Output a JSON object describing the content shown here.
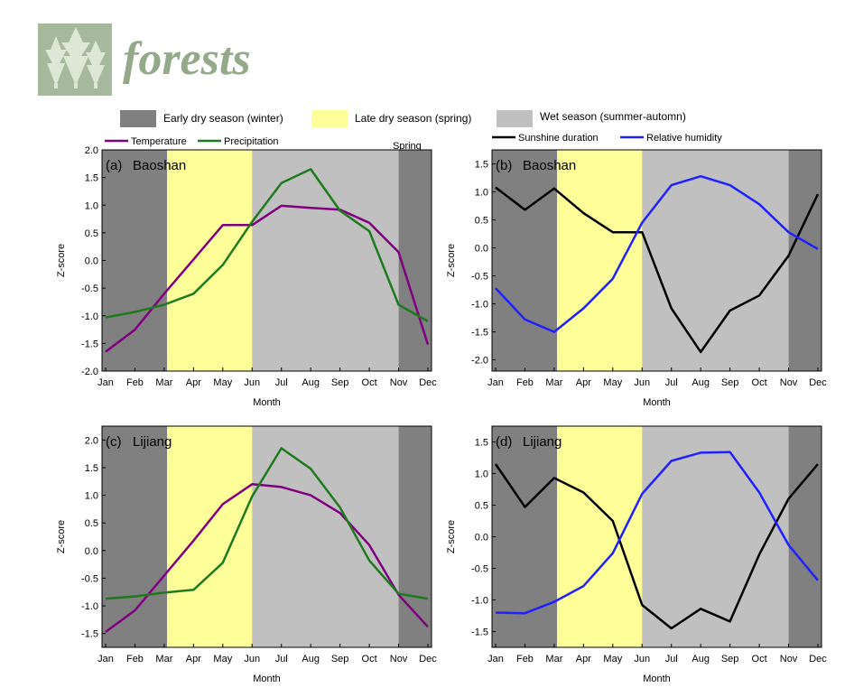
{
  "journal": {
    "name": "forests",
    "logo_color": "#a6b99c"
  },
  "season_legend": {
    "early": "Early dry season (winter)",
    "late": "Late dry season (spring)",
    "wet": "Wet season (summer-automn)",
    "spring_label": "Spring"
  },
  "colors": {
    "early": "#808080",
    "late": "#ffff99",
    "wet": "#c0c0c0",
    "temperature": "#800080",
    "precipitation": "#1f7a1f",
    "sunshine": "#000000",
    "humidity": "#2020ff"
  },
  "chart_data": [
    {
      "type": "line",
      "panel": "(a)",
      "title": "Baoshan",
      "xlabel": "Month",
      "ylabel": "Z-score",
      "categories": [
        "Jan",
        "Feb",
        "Mar",
        "Apr",
        "May",
        "Jun",
        "Jul",
        "Aug",
        "Sep",
        "Oct",
        "Nov",
        "Dec"
      ],
      "ylim": [
        -2.0,
        2.0
      ],
      "yticks": [
        "2.0",
        "1.5",
        "1.0",
        "0.5",
        "0.0",
        "-0.5",
        "-1.0",
        "-1.5",
        "-2.0"
      ],
      "seasons": [
        [
          "early",
          1,
          3.1
        ],
        [
          "late",
          3.1,
          6
        ],
        [
          "wet",
          6,
          11
        ],
        [
          "early",
          11,
          12
        ]
      ],
      "legend": {
        "labels": [
          "Temperature",
          "Precipitation"
        ],
        "colors": [
          "#800080",
          "#1f7a1f"
        ]
      },
      "series": [
        {
          "name": "Temperature",
          "color": "#800080",
          "values": [
            -1.65,
            -1.25,
            -0.6,
            0.02,
            0.64,
            0.64,
            0.99,
            0.95,
            0.92,
            0.68,
            0.15,
            -1.52
          ]
        },
        {
          "name": "Precipitation",
          "color": "#1f7a1f",
          "values": [
            -1.03,
            -0.93,
            -0.8,
            -0.6,
            -0.08,
            0.7,
            1.4,
            1.65,
            0.9,
            0.53,
            -0.8,
            -1.1
          ]
        }
      ]
    },
    {
      "type": "line",
      "panel": "(b)",
      "title": "Baoshan",
      "xlabel": "Month",
      "ylabel": "Z-score",
      "categories": [
        "Jan",
        "Feb",
        "Mar",
        "Apr",
        "May",
        "Jun",
        "Jul",
        "Aug",
        "Sep",
        "Oct",
        "Nov",
        "Dec"
      ],
      "ylim": [
        -2.2,
        1.75
      ],
      "yticks": [
        "1.5",
        "1.0",
        "0.5",
        "0.0",
        "-0.5",
        "-1.0",
        "-1.5",
        "-2.0"
      ],
      "seasons": [
        [
          "early",
          1,
          3.1
        ],
        [
          "late",
          3.1,
          6
        ],
        [
          "wet",
          6,
          11
        ],
        [
          "early",
          11,
          12
        ]
      ],
      "legend": {
        "labels": [
          "Sunshine duration",
          "Relative humidity"
        ],
        "colors": [
          "#000000",
          "#2020ff"
        ]
      },
      "series": [
        {
          "name": "Sunshine duration",
          "color": "#000000",
          "values": [
            1.08,
            0.68,
            1.06,
            0.62,
            0.28,
            0.28,
            -1.08,
            -1.86,
            -1.12,
            -0.85,
            -0.14,
            0.96
          ]
        },
        {
          "name": "Relative humidity",
          "color": "#2020ff",
          "values": [
            -0.72,
            -1.28,
            -1.5,
            -1.08,
            -0.55,
            0.45,
            1.12,
            1.28,
            1.12,
            0.78,
            0.28,
            -0.02
          ]
        }
      ]
    },
    {
      "type": "line",
      "panel": "(c)",
      "title": "Lijiang",
      "xlabel": "Month",
      "ylabel": "Z-score",
      "categories": [
        "Jan",
        "Feb",
        "Mar",
        "Apr",
        "May",
        "Jun",
        "Jul",
        "Aug",
        "Sep",
        "Oct",
        "Nov",
        "Dec"
      ],
      "ylim": [
        -1.75,
        2.25
      ],
      "yticks": [
        "2.0",
        "1.5",
        "1.0",
        "0.5",
        "0.0",
        "-0.5",
        "-1.0",
        "-1.5"
      ],
      "seasons": [
        [
          "early",
          1,
          3.1
        ],
        [
          "late",
          3.1,
          6
        ],
        [
          "wet",
          6,
          11
        ],
        [
          "early",
          11,
          12
        ]
      ],
      "series": [
        {
          "name": "Temperature",
          "color": "#800080",
          "values": [
            -1.47,
            -1.08,
            -0.45,
            0.18,
            0.84,
            1.2,
            1.15,
            1.0,
            0.68,
            0.1,
            -0.8,
            -1.38
          ]
        },
        {
          "name": "Precipitation",
          "color": "#1f7a1f",
          "values": [
            -0.87,
            -0.83,
            -0.76,
            -0.71,
            -0.22,
            0.98,
            1.85,
            1.48,
            0.78,
            -0.18,
            -0.78,
            -0.87
          ]
        }
      ]
    },
    {
      "type": "line",
      "panel": "(d)",
      "title": "Lijiang",
      "xlabel": "Month",
      "ylabel": "Z-score",
      "categories": [
        "Jan",
        "Feb",
        "Mar",
        "Apr",
        "May",
        "Jun",
        "Jul",
        "Aug",
        "Sep",
        "Oct",
        "Nov",
        "Dec"
      ],
      "ylim": [
        -1.75,
        1.75
      ],
      "yticks": [
        "1.5",
        "1.0",
        "0.5",
        "0.0",
        "-0.5",
        "-1.0",
        "-1.5"
      ],
      "seasons": [
        [
          "early",
          1,
          3.1
        ],
        [
          "late",
          3.1,
          6
        ],
        [
          "wet",
          6,
          11
        ],
        [
          "early",
          11,
          12
        ]
      ],
      "series": [
        {
          "name": "Sunshine duration",
          "color": "#000000",
          "values": [
            1.15,
            0.47,
            0.93,
            0.7,
            0.25,
            -1.08,
            -1.45,
            -1.14,
            -1.34,
            -0.28,
            0.6,
            1.15
          ]
        },
        {
          "name": "Relative humidity",
          "color": "#2020ff",
          "values": [
            -1.2,
            -1.21,
            -1.03,
            -0.78,
            -0.26,
            0.68,
            1.2,
            1.33,
            1.34,
            0.7,
            -0.13,
            -0.69
          ]
        }
      ]
    }
  ]
}
